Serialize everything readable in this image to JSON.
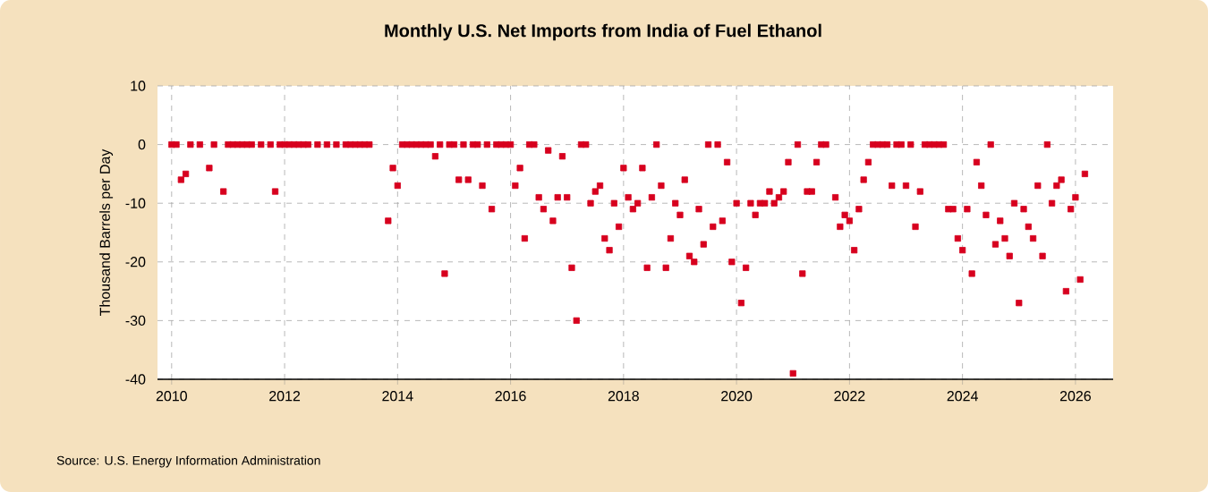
{
  "chart_data": {
    "type": "scatter",
    "title": "Monthly U.S. Net Imports from India of Fuel Ethanol",
    "ylabel": "Thousand Barrels per Day",
    "annotations": [
      "Source: U.S. Energy Information Administration"
    ],
    "xlim": [
      "2009-10",
      "2026-09"
    ],
    "xticks": [
      "2010",
      "2012",
      "2014",
      "2016",
      "2018",
      "2020",
      "2022",
      "2024",
      "2026"
    ],
    "ylim": [
      -40,
      10
    ],
    "yticks": [
      -40,
      -30,
      -20,
      -10,
      0,
      10
    ],
    "grid": true,
    "marker": "square",
    "color": "#d7001e",
    "x": [
      "2010-01",
      "2010-02",
      "2010-03",
      "2010-04",
      "2010-05",
      "2010-07",
      "2010-09",
      "2010-10",
      "2010-12",
      "2011-01",
      "2011-02",
      "2011-03",
      "2011-04",
      "2011-05",
      "2011-06",
      "2011-08",
      "2011-10",
      "2011-11",
      "2011-12",
      "2012-01",
      "2012-02",
      "2012-03",
      "2012-04",
      "2012-05",
      "2012-06",
      "2012-08",
      "2012-10",
      "2012-12",
      "2013-02",
      "2013-03",
      "2013-04",
      "2013-05",
      "2013-06",
      "2013-07",
      "2013-11",
      "2013-12",
      "2014-01",
      "2014-02",
      "2014-03",
      "2014-04",
      "2014-05",
      "2014-06",
      "2014-07",
      "2014-08",
      "2014-09",
      "2014-10",
      "2014-11",
      "2014-12",
      "2015-01",
      "2015-02",
      "2015-03",
      "2015-04",
      "2015-05",
      "2015-06",
      "2015-07",
      "2015-08",
      "2015-09",
      "2015-10",
      "2015-11",
      "2015-12",
      "2016-01",
      "2016-02",
      "2016-03",
      "2016-04",
      "2016-05",
      "2016-06",
      "2016-07",
      "2016-08",
      "2016-09",
      "2016-10",
      "2016-11",
      "2016-12",
      "2017-01",
      "2017-02",
      "2017-03",
      "2017-04",
      "2017-05",
      "2017-06",
      "2017-07",
      "2017-08",
      "2017-09",
      "2017-10",
      "2017-11",
      "2017-12",
      "2018-01",
      "2018-02",
      "2018-03",
      "2018-04",
      "2018-05",
      "2018-06",
      "2018-07",
      "2018-08",
      "2018-09",
      "2018-10",
      "2018-11",
      "2018-12",
      "2019-01",
      "2019-02",
      "2019-03",
      "2019-04",
      "2019-05",
      "2019-06",
      "2019-07",
      "2019-08",
      "2019-09",
      "2019-10",
      "2019-11",
      "2019-12",
      "2020-01",
      "2020-02",
      "2020-03",
      "2020-04",
      "2020-05",
      "2020-06",
      "2020-07",
      "2020-08",
      "2020-09",
      "2020-10",
      "2020-11",
      "2020-12",
      "2021-01",
      "2021-02",
      "2021-03",
      "2021-04",
      "2021-05",
      "2021-06",
      "2021-07",
      "2021-08",
      "2021-10",
      "2021-11",
      "2021-12",
      "2022-01",
      "2022-02",
      "2022-03",
      "2022-04",
      "2022-05",
      "2022-06",
      "2022-07",
      "2022-08",
      "2022-09",
      "2022-10",
      "2022-11",
      "2022-12",
      "2023-01",
      "2023-02",
      "2023-03",
      "2023-04",
      "2023-05",
      "2023-06",
      "2023-07",
      "2023-08",
      "2023-09",
      "2023-10",
      "2023-11",
      "2023-12",
      "2024-01",
      "2024-02",
      "2024-03",
      "2024-04",
      "2024-05",
      "2024-06",
      "2024-07",
      "2024-08",
      "2024-09",
      "2024-10",
      "2024-11",
      "2024-12",
      "2025-01",
      "2025-02",
      "2025-03",
      "2025-04",
      "2025-05",
      "2025-06",
      "2025-07",
      "2025-08",
      "2025-09",
      "2025-10",
      "2025-11",
      "2025-12",
      "2026-01",
      "2026-02",
      "2026-03"
    ],
    "values": [
      0,
      0,
      -6,
      -5,
      0,
      0,
      -4,
      0,
      -8,
      0,
      0,
      0,
      0,
      0,
      0,
      0,
      0,
      -8,
      0,
      0,
      0,
      0,
      0,
      0,
      0,
      0,
      0,
      0,
      0,
      0,
      0,
      0,
      0,
      0,
      -13,
      -4,
      -7,
      0,
      0,
      0,
      0,
      0,
      0,
      0,
      -2,
      0,
      -22,
      0,
      0,
      -6,
      0,
      -6,
      0,
      0,
      -7,
      0,
      -11,
      0,
      0,
      0,
      0,
      -7,
      -4,
      -16,
      0,
      0,
      -9,
      -11,
      -1,
      -13,
      -9,
      -2,
      -9,
      -21,
      -30,
      0,
      0,
      -10,
      -8,
      -7,
      -16,
      -18,
      -10,
      -14,
      -4,
      -9,
      -11,
      -10,
      -4,
      -21,
      -9,
      0,
      -7,
      -21,
      -16,
      -10,
      -12,
      -6,
      -19,
      -20,
      -11,
      -17,
      0,
      -14,
      0,
      -13,
      -3,
      -20,
      -10,
      -27,
      -21,
      -10,
      -12,
      -10,
      -10,
      -8,
      -10,
      -9,
      -8,
      -3,
      -39,
      0,
      -22,
      -8,
      -8,
      -3,
      0,
      0,
      -9,
      -14,
      -12,
      -13,
      -18,
      -11,
      -6,
      -3,
      0,
      0,
      0,
      0,
      -7,
      0,
      0,
      -7,
      0,
      -14,
      -8,
      0,
      0,
      0,
      0,
      0,
      -11,
      -11,
      -16,
      -18,
      -11,
      -22,
      -3,
      -7,
      -12,
      0,
      -17,
      -13,
      -16,
      -19,
      -10,
      -27,
      -11,
      -14,
      -16,
      -7,
      -19,
      0,
      -10,
      -7,
      -6,
      -25,
      -11,
      -9,
      -23,
      -5
    ]
  }
}
